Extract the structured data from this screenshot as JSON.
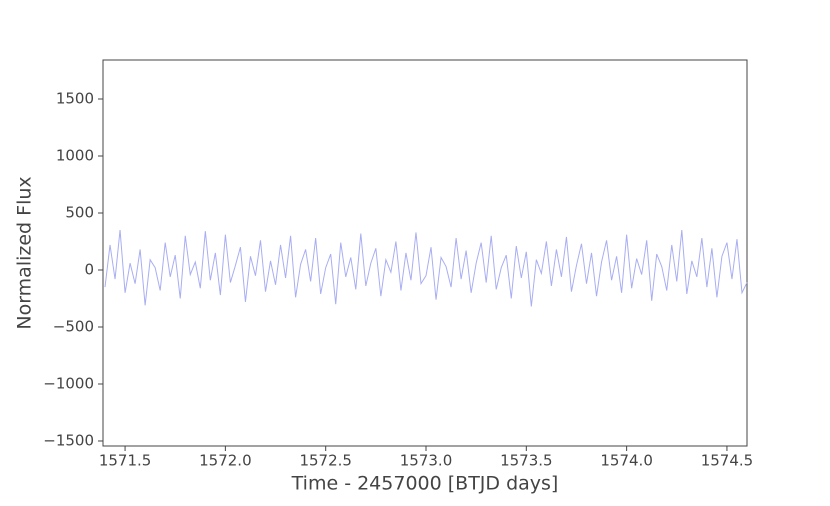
{
  "chart_data": {
    "type": "line",
    "xlabel": "Time - 2457000 [BTJD days]",
    "ylabel": "Normalized Flux",
    "x": [
      1571.4,
      1571.425,
      1571.45,
      1571.475,
      1571.5,
      1571.525,
      1571.55,
      1571.575,
      1571.6,
      1571.625,
      1571.65,
      1571.675,
      1571.7,
      1571.725,
      1571.75,
      1571.775,
      1571.8,
      1571.825,
      1571.85,
      1571.875,
      1571.9,
      1571.925,
      1571.95,
      1571.975,
      1572.0,
      1572.025,
      1572.05,
      1572.075,
      1572.1,
      1572.125,
      1572.15,
      1572.175,
      1572.2,
      1572.225,
      1572.25,
      1572.275,
      1572.3,
      1572.325,
      1572.35,
      1572.375,
      1572.4,
      1572.425,
      1572.45,
      1572.475,
      1572.5,
      1572.525,
      1572.55,
      1572.575,
      1572.6,
      1572.625,
      1572.65,
      1572.675,
      1572.7,
      1572.725,
      1572.75,
      1572.775,
      1572.8,
      1572.825,
      1572.85,
      1572.875,
      1572.9,
      1572.925,
      1572.95,
      1572.975,
      1573.0,
      1573.025,
      1573.05,
      1573.075,
      1573.1,
      1573.125,
      1573.15,
      1573.175,
      1573.2,
      1573.225,
      1573.25,
      1573.275,
      1573.3,
      1573.325,
      1573.35,
      1573.375,
      1573.4,
      1573.425,
      1573.45,
      1573.475,
      1573.5,
      1573.525,
      1573.55,
      1573.575,
      1573.6,
      1573.625,
      1573.65,
      1573.675,
      1573.7,
      1573.725,
      1573.75,
      1573.775,
      1573.8,
      1573.825,
      1573.85,
      1573.875,
      1573.9,
      1573.925,
      1573.95,
      1573.975,
      1574.0,
      1574.025,
      1574.05,
      1574.075,
      1574.1,
      1574.125,
      1574.15,
      1574.175,
      1574.2,
      1574.225,
      1574.25,
      1574.275,
      1574.3,
      1574.325,
      1574.35,
      1574.375,
      1574.4,
      1574.425,
      1574.45,
      1574.475,
      1574.5,
      1574.525,
      1574.55,
      1574.575,
      1574.6
    ],
    "series": [
      {
        "color": "#a9aef2",
        "values": [
          -150,
          220,
          -80,
          350,
          -200,
          60,
          -120,
          180,
          -310,
          90,
          20,
          -180,
          240,
          -60,
          130,
          -250,
          300,
          -40,
          70,
          -160,
          340,
          -90,
          150,
          -220,
          310,
          -110,
          40,
          200,
          -280,
          120,
          -50,
          260,
          -190,
          80,
          -130,
          220,
          -70,
          300,
          -240,
          50,
          180,
          -100,
          280,
          -210,
          20,
          140,
          -300,
          240,
          -60,
          110,
          -170,
          320,
          -140,
          60,
          190,
          -230,
          90,
          -20,
          250,
          -180,
          150,
          -90,
          330,
          -120,
          -50,
          200,
          -260,
          110,
          30,
          -150,
          280,
          -80,
          170,
          -200,
          60,
          240,
          -110,
          300,
          -170,
          20,
          130,
          -250,
          210,
          -70,
          160,
          -320,
          90,
          -30,
          250,
          -140,
          180,
          -60,
          290,
          -190,
          40,
          230,
          -120,
          150,
          -230,
          70,
          260,
          -90,
          120,
          -200,
          310,
          -160,
          100,
          -40,
          260,
          -270,
          140,
          30,
          -180,
          220,
          -100,
          350,
          -210,
          80,
          -60,
          280,
          -150,
          190,
          -240,
          120,
          240,
          -80,
          270,
          -200,
          -110
        ]
      }
    ],
    "xlim": [
      1571.39,
      1574.6
    ],
    "ylim": [
      -1544,
      1842
    ],
    "xticks": [
      1571.5,
      {
        "value": 1572,
        "label": "1572.0"
      },
      1572.5,
      {
        "value": 1573,
        "label": "1573.0"
      },
      1573.5,
      {
        "value": 1574,
        "label": "1574.0"
      },
      1574.5
    ],
    "yticks": [
      {
        "value": -1500,
        "label": "−1500"
      },
      {
        "value": -1000,
        "label": "−1000"
      },
      {
        "value": -500,
        "label": "−500"
      },
      0,
      500,
      1000,
      1500
    ],
    "grid": false
  }
}
